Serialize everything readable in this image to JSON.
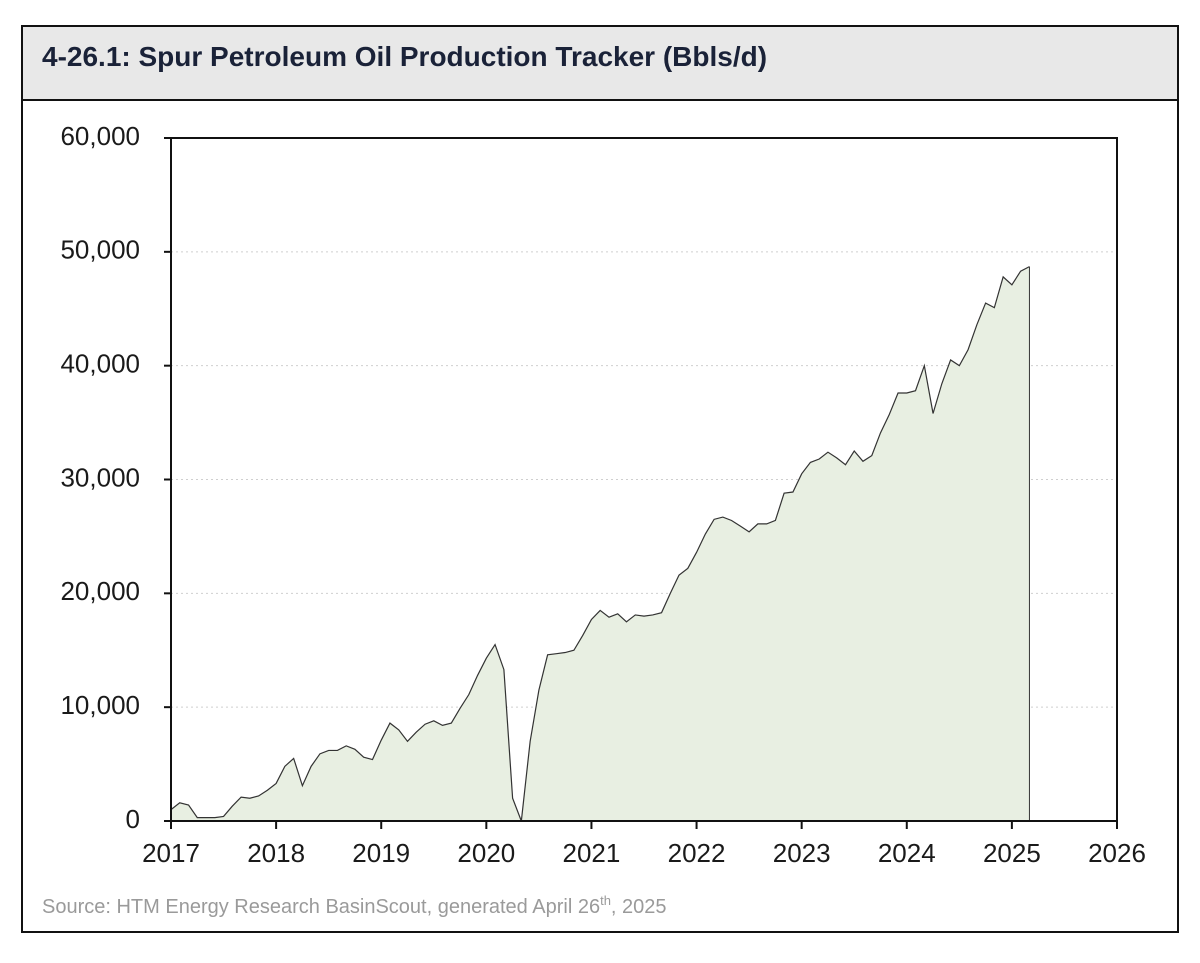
{
  "chart_data": {
    "type": "area",
    "title": "4-26.1: Spur Petroleum Oil Production Tracker (Bbls/d)",
    "source_parts": [
      "Source: HTM Energy Research BasinScout, generated April 26",
      "th",
      ", 2025"
    ],
    "x": [
      2017,
      2017.083,
      2017.167,
      2017.25,
      2017.333,
      2017.417,
      2017.5,
      2017.583,
      2017.667,
      2017.75,
      2017.833,
      2017.917,
      2018,
      2018.083,
      2018.167,
      2018.25,
      2018.333,
      2018.417,
      2018.5,
      2018.583,
      2018.667,
      2018.75,
      2018.833,
      2018.917,
      2019,
      2019.083,
      2019.167,
      2019.25,
      2019.333,
      2019.417,
      2019.5,
      2019.583,
      2019.667,
      2019.75,
      2019.833,
      2019.917,
      2020,
      2020.083,
      2020.167,
      2020.25,
      2020.333,
      2020.417,
      2020.5,
      2020.583,
      2020.667,
      2020.75,
      2020.833,
      2020.917,
      2021,
      2021.083,
      2021.167,
      2021.25,
      2021.333,
      2021.417,
      2021.5,
      2021.583,
      2021.667,
      2021.75,
      2021.833,
      2021.917,
      2022,
      2022.083,
      2022.167,
      2022.25,
      2022.333,
      2022.417,
      2022.5,
      2022.583,
      2022.667,
      2022.75,
      2022.833,
      2022.917,
      2023,
      2023.083,
      2023.167,
      2023.25,
      2023.333,
      2023.417,
      2023.5,
      2023.583,
      2023.667,
      2023.75,
      2023.833,
      2023.917,
      2024,
      2024.083,
      2024.167,
      2024.25,
      2024.333,
      2024.417,
      2024.5,
      2024.583,
      2024.667,
      2024.75,
      2024.833,
      2024.917,
      2025,
      2025.083,
      2025.167
    ],
    "values": [
      1000,
      1600,
      1400,
      300,
      300,
      300,
      400,
      1300,
      2100,
      2000,
      2200,
      2700,
      3300,
      4800,
      5500,
      3100,
      4800,
      5900,
      6200,
      6200,
      6600,
      6300,
      5600,
      5400,
      7100,
      8600,
      8000,
      7000,
      7800,
      8500,
      8800,
      8400,
      8600,
      9900,
      11100,
      12800,
      14300,
      15500,
      13300,
      2000,
      0,
      7000,
      11500,
      14600,
      14700,
      14800,
      15000,
      16300,
      17700,
      18500,
      17900,
      18200,
      17500,
      18100,
      18000,
      18100,
      18300,
      20000,
      21600,
      22200,
      23600,
      25200,
      26500,
      26700,
      26400,
      25900,
      25400,
      26100,
      26100,
      26400,
      28800,
      28900,
      30500,
      31500,
      31800,
      32400,
      31900,
      31300,
      32500,
      31600,
      32100,
      34100,
      35700,
      37600,
      37600,
      37800,
      40000,
      35800,
      38400,
      40500,
      40000,
      41400,
      43600,
      45500,
      45100,
      47800,
      47100,
      48300,
      48700
    ],
    "color": "#e8efe2",
    "line_color": "#333333",
    "xlim": [
      2017,
      2026
    ],
    "xticks": [
      2017,
      2018,
      2019,
      2020,
      2021,
      2022,
      2023,
      2024,
      2025,
      2026
    ],
    "ylim": [
      0,
      60000
    ],
    "yticks": [
      0,
      {
        "value": 10000,
        "label": "10,000"
      },
      {
        "value": 20000,
        "label": "20,000"
      },
      {
        "value": 30000,
        "label": "30,000"
      },
      {
        "value": 40000,
        "label": "40,000"
      },
      {
        "value": 50000,
        "label": "50,000"
      },
      {
        "value": 60000,
        "label": "60,000"
      }
    ],
    "grid": true
  }
}
